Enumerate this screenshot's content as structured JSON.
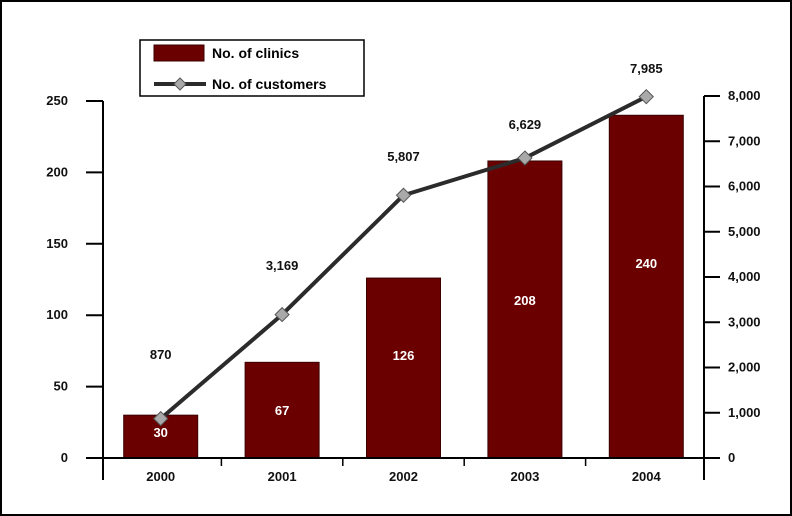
{
  "colors": {
    "bar": "#6b0000",
    "bar_edge": "#3a0000",
    "line": "#2b2b2b",
    "marker": "#a9a9a9",
    "axis": "#000000"
  },
  "legend": {
    "bars_label": "No. of clinics",
    "line_label": "No. of customers"
  },
  "chart_data": {
    "type": "bar",
    "categories": [
      "2000",
      "2001",
      "2002",
      "2003",
      "2004"
    ],
    "series": [
      {
        "name": "No. of clinics",
        "type": "bar",
        "axis": "left",
        "values": [
          30,
          67,
          126,
          208,
          240
        ],
        "value_labels": [
          "30",
          "67",
          "126",
          "208",
          "240"
        ]
      },
      {
        "name": "No. of customers",
        "type": "line",
        "axis": "right",
        "values": [
          870,
          3169,
          5807,
          6629,
          7985
        ],
        "value_labels": [
          "870",
          "3,169",
          "5,807",
          "6,629",
          "7,985"
        ]
      }
    ],
    "left_axis": {
      "ylim": [
        0,
        250
      ],
      "ticks": [
        0,
        50,
        100,
        150,
        200,
        250
      ],
      "tick_labels": [
        "0",
        "50",
        "100",
        "150",
        "200",
        "250"
      ]
    },
    "right_axis": {
      "ylim": [
        0,
        8000
      ],
      "ticks": [
        0,
        1000,
        2000,
        3000,
        4000,
        5000,
        6000,
        7000,
        8000
      ],
      "tick_labels": [
        "0",
        "1,000",
        "2,000",
        "3,000",
        "4,000",
        "5,000",
        "6,000",
        "7,000",
        "8,000"
      ]
    },
    "grid": false,
    "legend_position": "top-left"
  }
}
